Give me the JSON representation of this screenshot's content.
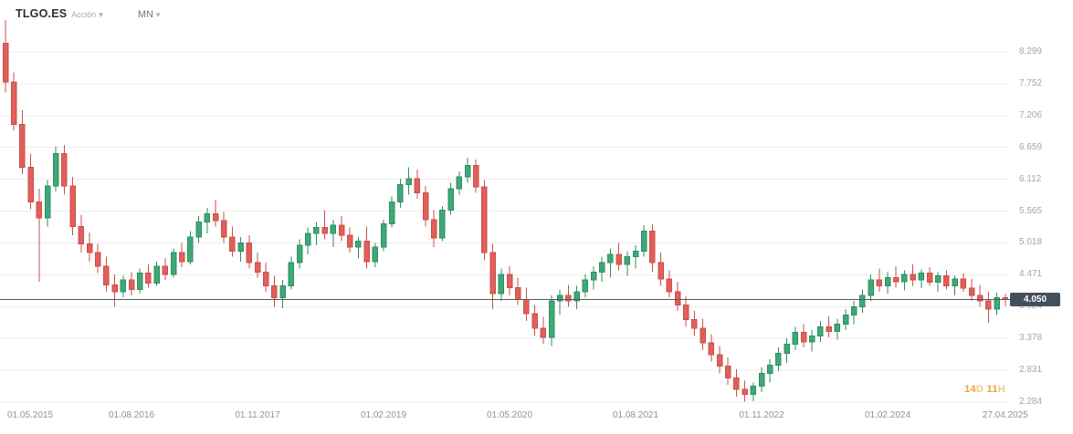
{
  "header": {
    "symbol": "TLGO.ES",
    "instrument_type": "Acción",
    "timeframe": "MN"
  },
  "icons": {
    "chevron_down": "▾"
  },
  "price_axis": {
    "current_price": "4.050",
    "ticks": [
      "8.299",
      "7.752",
      "7.206",
      "6.659",
      "6.112",
      "5.565",
      "5.018",
      "4.471",
      "3.924",
      "3.378",
      "2.831",
      "2.284"
    ]
  },
  "time_axis": {
    "labels": [
      "01.05.2015",
      "01.08.2016",
      "01.11.2017",
      "01.02.2019",
      "01.05.2020",
      "01.08.2021",
      "01.11.2022",
      "01.02.2024",
      "27.04.2025"
    ]
  },
  "countdown": {
    "text": "14D 11H",
    "parts": [
      {
        "value": "14",
        "unit": "D"
      },
      {
        "value": "11",
        "unit": "H"
      }
    ]
  },
  "colors": {
    "up": "#3fa878",
    "up_border": "#2e8e60",
    "down": "#e25f5a",
    "down_border": "#c94f4b",
    "grid": "#ededed",
    "price_line": "#55595e",
    "price_badge_bg": "#43505c",
    "price_badge_text": "#ffffff",
    "countdown_strong": "#f0a132",
    "countdown_light": "#f6c98e"
  },
  "chart_data": {
    "type": "candlestick",
    "title": "TLGO.ES (Acción) — MN",
    "symbol": "TLGO.ES",
    "timeframe": "MN",
    "start_month": "2015-05",
    "x_range": [
      "2015-05",
      "2025-04"
    ],
    "current_price": 4.05,
    "time_to_candle_close": "14D 11H",
    "y_ticks": [
      8.299,
      7.752,
      7.206,
      6.659,
      6.112,
      5.565,
      5.018,
      4.471,
      3.924,
      3.378,
      2.831,
      2.284
    ],
    "ylim": [
      2.1,
      8.9
    ],
    "grid": "horizontal",
    "legend": false,
    "x_tick_labels": [
      "01.05.2015",
      "01.08.2016",
      "01.11.2017",
      "01.02.2019",
      "01.05.2020",
      "01.08.2021",
      "01.11.2022",
      "01.02.2024",
      "27.04.2025"
    ],
    "x_tick_candle_indexes": [
      0,
      15,
      30,
      45,
      60,
      75,
      90,
      105,
      119
    ],
    "candles_ohlc": [
      [
        8.45,
        8.85,
        7.6,
        7.78
      ],
      [
        7.78,
        7.95,
        6.95,
        7.05
      ],
      [
        7.05,
        7.3,
        6.2,
        6.32
      ],
      [
        6.32,
        6.55,
        5.6,
        5.72
      ],
      [
        5.72,
        5.95,
        4.35,
        5.45
      ],
      [
        5.45,
        6.1,
        5.3,
        6.0
      ],
      [
        6.0,
        6.68,
        5.9,
        6.55
      ],
      [
        6.55,
        6.7,
        5.85,
        6.0
      ],
      [
        6.0,
        6.15,
        5.15,
        5.3
      ],
      [
        5.3,
        5.5,
        4.85,
        5.0
      ],
      [
        5.0,
        5.2,
        4.7,
        4.85
      ],
      [
        4.85,
        5.0,
        4.5,
        4.62
      ],
      [
        4.62,
        4.78,
        4.18,
        4.3
      ],
      [
        4.3,
        4.48,
        3.92,
        4.18
      ],
      [
        4.18,
        4.45,
        4.08,
        4.38
      ],
      [
        4.38,
        4.52,
        4.12,
        4.22
      ],
      [
        4.22,
        4.58,
        4.15,
        4.5
      ],
      [
        4.5,
        4.65,
        4.25,
        4.33
      ],
      [
        4.33,
        4.7,
        4.28,
        4.62
      ],
      [
        4.62,
        4.76,
        4.38,
        4.48
      ],
      [
        4.48,
        4.92,
        4.42,
        4.85
      ],
      [
        4.85,
        5.02,
        4.6,
        4.7
      ],
      [
        4.7,
        5.22,
        4.65,
        5.12
      ],
      [
        5.12,
        5.48,
        5.02,
        5.38
      ],
      [
        5.38,
        5.62,
        5.18,
        5.52
      ],
      [
        5.52,
        5.76,
        5.3,
        5.4
      ],
      [
        5.4,
        5.55,
        5.02,
        5.12
      ],
      [
        5.12,
        5.3,
        4.78,
        4.88
      ],
      [
        4.88,
        5.12,
        4.7,
        5.02
      ],
      [
        5.02,
        5.15,
        4.58,
        4.68
      ],
      [
        4.68,
        4.85,
        4.42,
        4.52
      ],
      [
        4.52,
        4.68,
        4.18,
        4.28
      ],
      [
        4.28,
        4.45,
        3.92,
        4.08
      ],
      [
        4.08,
        4.38,
        3.9,
        4.28
      ],
      [
        4.28,
        4.78,
        4.22,
        4.68
      ],
      [
        4.68,
        5.08,
        4.58,
        4.98
      ],
      [
        4.98,
        5.28,
        4.82,
        5.18
      ],
      [
        5.18,
        5.38,
        4.98,
        5.28
      ],
      [
        5.28,
        5.58,
        5.08,
        5.18
      ],
      [
        5.18,
        5.42,
        4.95,
        5.32
      ],
      [
        5.32,
        5.48,
        5.05,
        5.15
      ],
      [
        5.15,
        5.28,
        4.85,
        4.95
      ],
      [
        4.95,
        5.12,
        4.75,
        5.05
      ],
      [
        5.05,
        5.3,
        4.58,
        4.7
      ],
      [
        4.7,
        5.02,
        4.6,
        4.95
      ],
      [
        4.95,
        5.42,
        4.88,
        5.35
      ],
      [
        5.35,
        5.82,
        5.28,
        5.72
      ],
      [
        5.72,
        6.12,
        5.62,
        6.02
      ],
      [
        6.02,
        6.32,
        5.85,
        6.12
      ],
      [
        6.12,
        6.28,
        5.78,
        5.88
      ],
      [
        5.88,
        6.0,
        5.3,
        5.42
      ],
      [
        5.42,
        5.58,
        4.95,
        5.1
      ],
      [
        5.1,
        5.65,
        5.05,
        5.58
      ],
      [
        5.58,
        6.05,
        5.5,
        5.95
      ],
      [
        5.95,
        6.25,
        5.85,
        6.15
      ],
      [
        6.15,
        6.48,
        6.05,
        6.35
      ],
      [
        6.35,
        6.45,
        5.88,
        5.98
      ],
      [
        5.98,
        6.1,
        4.72,
        4.85
      ],
      [
        4.85,
        5.0,
        3.88,
        4.15
      ],
      [
        4.15,
        4.58,
        4.02,
        4.48
      ],
      [
        4.48,
        4.62,
        4.12,
        4.25
      ],
      [
        4.25,
        4.42,
        3.95,
        4.05
      ],
      [
        4.05,
        4.25,
        3.68,
        3.8
      ],
      [
        3.8,
        3.95,
        3.42,
        3.55
      ],
      [
        3.55,
        3.75,
        3.28,
        3.4
      ],
      [
        3.4,
        4.12,
        3.25,
        4.02
      ],
      [
        4.02,
        4.22,
        3.78,
        4.12
      ],
      [
        4.12,
        4.3,
        3.92,
        4.02
      ],
      [
        4.02,
        4.28,
        3.88,
        4.18
      ],
      [
        4.18,
        4.48,
        4.08,
        4.38
      ],
      [
        4.38,
        4.62,
        4.22,
        4.52
      ],
      [
        4.52,
        4.78,
        4.35,
        4.68
      ],
      [
        4.68,
        4.92,
        4.42,
        4.82
      ],
      [
        4.82,
        5.02,
        4.55,
        4.65
      ],
      [
        4.65,
        4.88,
        4.45,
        4.78
      ],
      [
        4.78,
        4.98,
        4.58,
        4.88
      ],
      [
        4.88,
        5.32,
        4.78,
        5.22
      ],
      [
        5.22,
        5.35,
        4.52,
        4.68
      ],
      [
        4.68,
        4.85,
        4.28,
        4.4
      ],
      [
        4.4,
        4.55,
        4.08,
        4.18
      ],
      [
        4.18,
        4.35,
        3.85,
        3.95
      ],
      [
        3.95,
        4.1,
        3.58,
        3.7
      ],
      [
        3.7,
        3.85,
        3.42,
        3.55
      ],
      [
        3.55,
        3.72,
        3.18,
        3.3
      ],
      [
        3.3,
        3.45,
        2.98,
        3.1
      ],
      [
        3.1,
        3.25,
        2.78,
        2.9
      ],
      [
        2.9,
        3.05,
        2.58,
        2.7
      ],
      [
        2.7,
        2.85,
        2.38,
        2.5
      ],
      [
        2.5,
        2.65,
        2.29,
        2.42
      ],
      [
        2.42,
        2.62,
        2.3,
        2.56
      ],
      [
        2.56,
        2.88,
        2.46,
        2.78
      ],
      [
        2.78,
        3.02,
        2.62,
        2.92
      ],
      [
        2.92,
        3.22,
        2.82,
        3.12
      ],
      [
        3.12,
        3.38,
        2.96,
        3.28
      ],
      [
        3.28,
        3.58,
        3.18,
        3.48
      ],
      [
        3.48,
        3.62,
        3.22,
        3.32
      ],
      [
        3.32,
        3.52,
        3.15,
        3.42
      ],
      [
        3.42,
        3.68,
        3.32,
        3.58
      ],
      [
        3.58,
        3.76,
        3.4,
        3.5
      ],
      [
        3.5,
        3.72,
        3.36,
        3.62
      ],
      [
        3.62,
        3.88,
        3.52,
        3.78
      ],
      [
        3.78,
        4.02,
        3.62,
        3.92
      ],
      [
        3.92,
        4.22,
        3.82,
        4.12
      ],
      [
        4.12,
        4.48,
        4.02,
        4.38
      ],
      [
        4.38,
        4.58,
        4.18,
        4.28
      ],
      [
        4.28,
        4.52,
        4.15,
        4.42
      ],
      [
        4.42,
        4.62,
        4.25,
        4.35
      ],
      [
        4.35,
        4.55,
        4.2,
        4.48
      ],
      [
        4.48,
        4.65,
        4.28,
        4.38
      ],
      [
        4.38,
        4.56,
        4.24,
        4.5
      ],
      [
        4.5,
        4.6,
        4.28,
        4.34
      ],
      [
        4.34,
        4.52,
        4.18,
        4.45
      ],
      [
        4.45,
        4.55,
        4.22,
        4.28
      ],
      [
        4.28,
        4.46,
        4.12,
        4.4
      ],
      [
        4.4,
        4.5,
        4.18,
        4.24
      ],
      [
        4.24,
        4.4,
        4.02,
        4.12
      ],
      [
        4.12,
        4.3,
        3.92,
        4.02
      ],
      [
        4.02,
        4.18,
        3.65,
        3.88
      ],
      [
        3.88,
        4.16,
        3.78,
        4.08
      ],
      [
        4.08,
        4.14,
        3.94,
        4.05
      ]
    ]
  }
}
